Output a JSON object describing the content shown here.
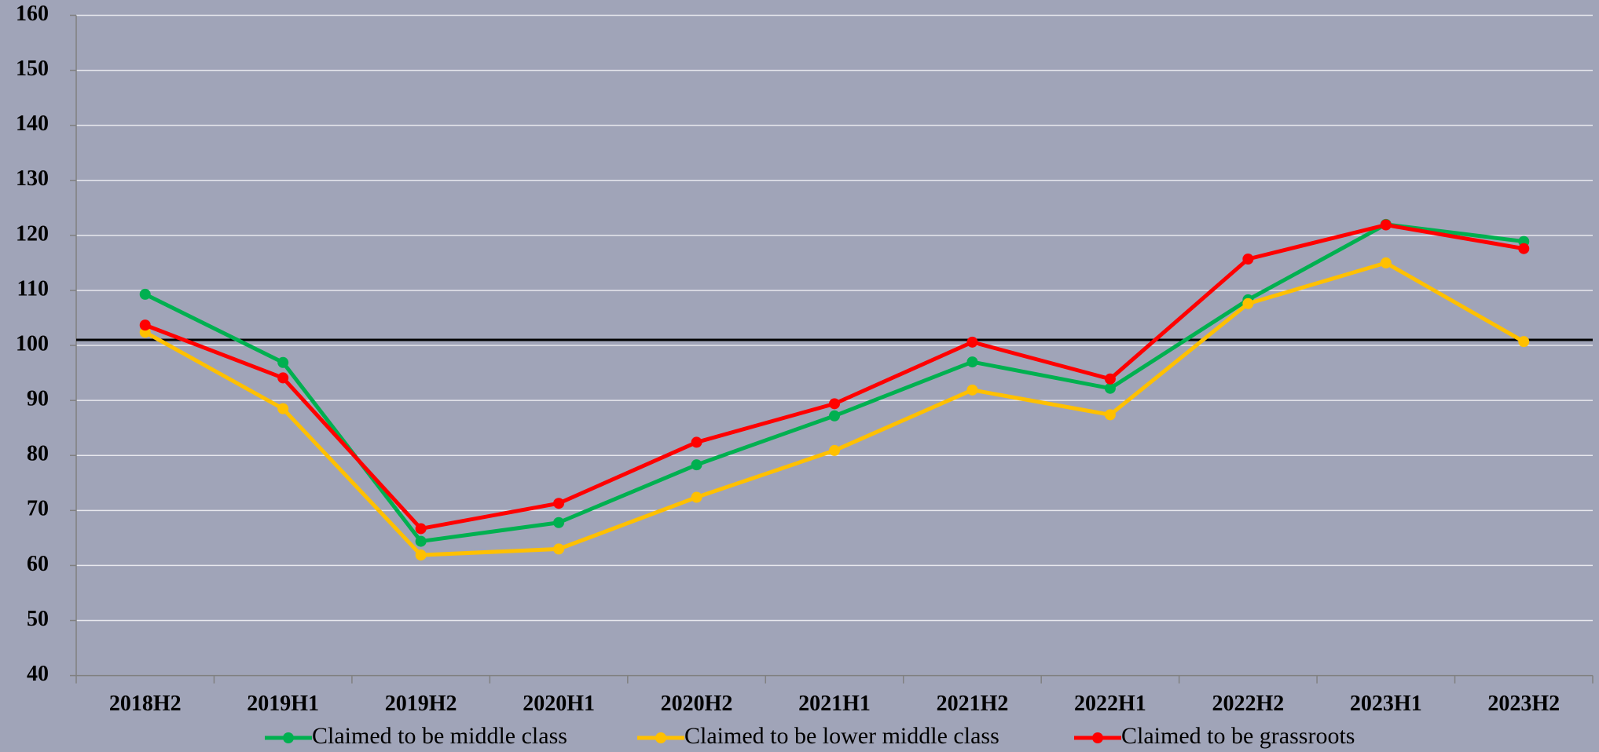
{
  "chart_data": {
    "type": "line",
    "categories": [
      "2018H2",
      "2019H1",
      "2019H2",
      "2020H1",
      "2020H2",
      "2021H1",
      "2021H2",
      "2022H1",
      "2022H2",
      "2023H1",
      "2023H2"
    ],
    "series": [
      {
        "name": "Claimed to be middle class",
        "color": "#00b050",
        "values": [
          109.3,
          96.9,
          64.4,
          67.8,
          78.3,
          87.2,
          97,
          92.2,
          108.3,
          122,
          118.9
        ]
      },
      {
        "name": "Claimed to be lower middle class",
        "color": "#ffc000",
        "values": [
          102.4,
          88.5,
          61.9,
          63,
          72.4,
          80.9,
          91.9,
          87.4,
          107.6,
          115,
          100.7
        ]
      },
      {
        "name": "Claimed to be grassroots",
        "color": "#ff0000",
        "values": [
          103.7,
          94.1,
          66.7,
          71.3,
          82.4,
          89.4,
          100.6,
          93.9,
          115.7,
          121.9,
          117.6
        ]
      }
    ],
    "reference_line": 101,
    "ylim": [
      40,
      160
    ],
    "yticks": [
      40,
      50,
      60,
      70,
      80,
      90,
      100,
      110,
      120,
      130,
      140,
      150,
      160
    ],
    "grid": true,
    "legend": "bottom"
  }
}
